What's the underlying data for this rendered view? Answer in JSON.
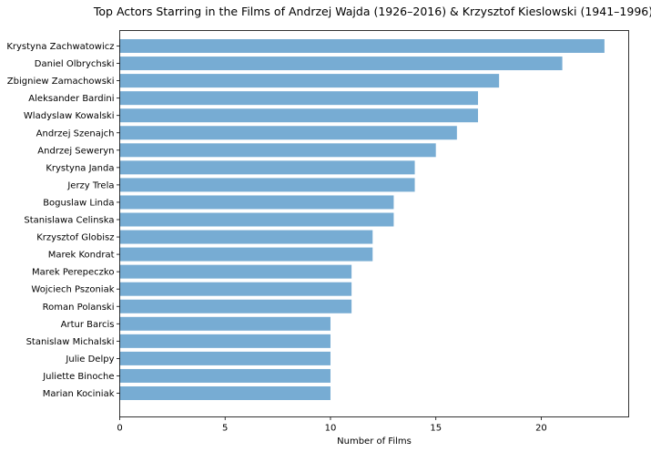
{
  "chart_data": {
    "type": "bar",
    "orientation": "horizontal",
    "title": "Top Actors Starring in the Films of Andrzej Wajda (1926–2016) & Krzysztof Kieslowski (1941–1996)",
    "xlabel": "Number of Films",
    "ylabel": "",
    "xlim": [
      0,
      24.15
    ],
    "xticks": [
      0,
      5,
      10,
      15,
      20
    ],
    "bar_color": "#77acd3",
    "grid": false,
    "categories": [
      "Krystyna Zachwatowicz",
      "Daniel Olbrychski",
      "Zbigniew Zamachowski",
      "Aleksander Bardini",
      "Wladyslaw Kowalski",
      "Andrzej Szenajch",
      "Andrzej Seweryn",
      "Krystyna Janda",
      "Jerzy Trela",
      "Boguslaw Linda",
      "Stanislawa Celinska",
      "Krzysztof Globisz",
      "Marek Kondrat",
      "Marek Perepeczko",
      "Wojciech Pszoniak",
      "Roman Polanski",
      "Artur Barcis",
      "Stanislaw Michalski",
      "Julie Delpy",
      "Juliette Binoche",
      "Marian Kociniak"
    ],
    "values": [
      23,
      21,
      18,
      17,
      17,
      16,
      15,
      14,
      14,
      13,
      13,
      12,
      12,
      11,
      11,
      11,
      10,
      10,
      10,
      10,
      10
    ]
  }
}
